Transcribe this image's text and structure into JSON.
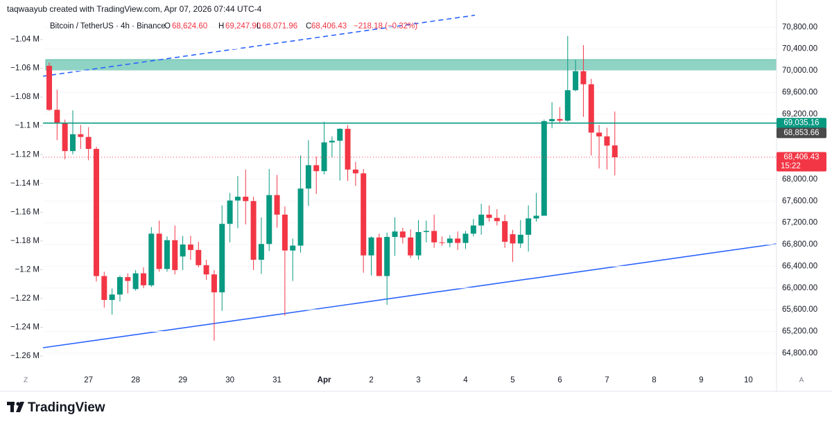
{
  "chart_data": {
    "type": "candlestick",
    "attribution": "taqwaayub created with TradingView.com, Apr 07, 2026 07:44 UTC-4",
    "symbol": "Bitcoin / TetherUS · 4h · Binance",
    "legend_values": [
      {
        "key": "O",
        "value": "68,624.60"
      },
      {
        "key": "H",
        "value": "69,247.90"
      },
      {
        "key": "L",
        "value": "68,071.96"
      },
      {
        "key": "C",
        "value": "68,406.43"
      }
    ],
    "change": "−218.18 (−0.32%)",
    "up_color": "#089981",
    "down_color": "#f23645",
    "categories": [
      null,
      null,
      null,
      null,
      null,
      "27",
      null,
      null,
      null,
      null,
      null,
      "28",
      null,
      null,
      null,
      null,
      null,
      "29",
      null,
      null,
      null,
      null,
      null,
      "30",
      null,
      null,
      null,
      null,
      null,
      "31",
      null,
      null,
      null,
      null,
      null,
      "Apr",
      null,
      null,
      null,
      null,
      null,
      "2",
      null,
      null,
      null,
      null,
      null,
      "3",
      null,
      null,
      null,
      null,
      null,
      "4",
      null,
      null,
      null,
      null,
      null,
      "5",
      null,
      null,
      null,
      null,
      null,
      "6",
      null,
      null,
      null,
      null,
      null,
      "7",
      null,
      null,
      null,
      null,
      null,
      "8",
      null,
      null,
      null,
      null,
      null,
      "9",
      null,
      null,
      null,
      null,
      null,
      "10"
    ],
    "open": [
      70090,
      69280,
      69040,
      68520,
      68830,
      68780,
      68560,
      66220,
      65780,
      65880,
      66200,
      65980,
      66270,
      66050,
      67000,
      66350,
      66880,
      66580,
      66800,
      66700,
      66420,
      66250,
      65920,
      67180,
      67610,
      67680,
      67600,
      66520,
      66810,
      67710,
      67350,
      66690,
      66780,
      67830,
      68260,
      68150,
      68680,
      68710,
      68930,
      68180,
      68110,
      66600,
      66930,
      66220,
      66940,
      67040,
      66930,
      66600,
      67030,
      67050,
      66840,
      66830,
      66910,
      66830,
      67000,
      67150,
      67350,
      67290,
      67230,
      66990,
      66820,
      66980,
      67280,
      67330,
      69070,
      69110,
      69080,
      69640,
      69990,
      69750,
      68860,
      68790,
      68624.6,
      null,
      null,
      null,
      null,
      null,
      null,
      null,
      null,
      null,
      null,
      null,
      null,
      null,
      null,
      null,
      null,
      null
    ],
    "high": [
      70150,
      69650,
      69100,
      69270,
      69000,
      68960,
      68600,
      66300,
      65990,
      66230,
      66270,
      66330,
      66380,
      67120,
      67240,
      66950,
      67150,
      66960,
      66960,
      66850,
      66520,
      66330,
      67520,
      67750,
      68060,
      68180,
      67680,
      67300,
      68190,
      68080,
      67500,
      66910,
      68440,
      68720,
      68420,
      69060,
      68790,
      68940,
      69000,
      68320,
      68190,
      66950,
      67000,
      67020,
      67300,
      67110,
      67080,
      67250,
      67240,
      67350,
      66950,
      66970,
      67040,
      67050,
      67270,
      67550,
      67520,
      67450,
      67350,
      67070,
      67250,
      67520,
      67750,
      69100,
      69420,
      69330,
      70640,
      70200,
      70470,
      69850,
      69000,
      68950,
      69247.9,
      null,
      null,
      null,
      null,
      null,
      null,
      null,
      null,
      null,
      null,
      null,
      null,
      null,
      null,
      null,
      null,
      null
    ],
    "low": [
      69260,
      68720,
      68370,
      68460,
      68560,
      68350,
      66120,
      65640,
      65510,
      65750,
      65900,
      65950,
      66000,
      66020,
      66300,
      66300,
      66250,
      66330,
      66520,
      66380,
      66150,
      65030,
      65580,
      66840,
      67100,
      67170,
      66330,
      66260,
      66680,
      67110,
      65490,
      66130,
      66650,
      67510,
      67730,
      68090,
      68400,
      67980,
      67970,
      67880,
      66280,
      66230,
      66220,
      65690,
      66590,
      66820,
      66550,
      66520,
      66840,
      66740,
      66780,
      66750,
      66700,
      66720,
      66950,
      66980,
      67220,
      67150,
      66740,
      66480,
      66740,
      66670,
      67220,
      67330,
      68940,
      69030,
      69060,
      69620,
      69150,
      68440,
      68200,
      68180,
      68071.96,
      null,
      null,
      null,
      null,
      null,
      null,
      null,
      null,
      null,
      null,
      null,
      null,
      null,
      null,
      null,
      null,
      null
    ],
    "close": [
      69280,
      69040,
      68520,
      68830,
      68780,
      68560,
      66220,
      65780,
      65880,
      66200,
      66130,
      66270,
      66050,
      67000,
      66350,
      66880,
      66330,
      66800,
      66700,
      66420,
      66250,
      65920,
      67180,
      67610,
      67680,
      67600,
      66520,
      66810,
      67710,
      67350,
      66690,
      66780,
      67830,
      68260,
      68150,
      68680,
      68710,
      68930,
      68180,
      68110,
      66600,
      66930,
      66220,
      66940,
      67040,
      66930,
      66600,
      67030,
      67050,
      66840,
      66830,
      66910,
      66830,
      67000,
      67150,
      67350,
      67290,
      67230,
      66850,
      66820,
      66980,
      67280,
      67330,
      69070,
      69110,
      69080,
      69640,
      69990,
      69750,
      68860,
      68790,
      68620,
      68406.43,
      null,
      null,
      null,
      null,
      null,
      null,
      null,
      null,
      null,
      null,
      null,
      null,
      null,
      null,
      null,
      null,
      null
    ],
    "ylim": [
      64480,
      71020
    ],
    "yticks": [
      {
        "value": 64800,
        "label": "64,800.00"
      },
      {
        "value": 65200,
        "label": "65,200.00"
      },
      {
        "value": 65600,
        "label": "65,600.00"
      },
      {
        "value": 66000,
        "label": "66,000.00"
      },
      {
        "value": 66400,
        "label": "66,400.00"
      },
      {
        "value": 66800,
        "label": "66,800.00"
      },
      {
        "value": 67200,
        "label": "67,200.00"
      },
      {
        "value": 67600,
        "label": "67,600.00"
      },
      {
        "value": 68000,
        "label": "68,000.00"
      },
      {
        "value": 69200,
        "label": "69,200.00"
      },
      {
        "value": 69600,
        "label": "69,600.00"
      },
      {
        "value": 70000,
        "label": "70,000.00"
      },
      {
        "value": 70400,
        "label": "70,400.00"
      },
      {
        "value": 70800,
        "label": "70,800.00"
      }
    ],
    "y2lim": [
      -1270100,
      -1023100
    ],
    "y2ticks": [
      {
        "value": -1040000,
        "label": "−1.04 M"
      },
      {
        "value": -1060000,
        "label": "−1.06 M"
      },
      {
        "value": -1080000,
        "label": "−1.08 M"
      },
      {
        "value": -1100000,
        "label": "−1.1 M"
      },
      {
        "value": -1120000,
        "label": "−1.12 M"
      },
      {
        "value": -1140000,
        "label": "−1.14 M"
      },
      {
        "value": -1160000,
        "label": "−1.16 M"
      },
      {
        "value": -1180000,
        "label": "−1.18 M"
      },
      {
        "value": -1200000,
        "label": "−1.2 M"
      },
      {
        "value": -1220000,
        "label": "−1.22 M"
      },
      {
        "value": -1240000,
        "label": "−1.24 M"
      },
      {
        "value": -1260000,
        "label": "−1.26 M"
      }
    ],
    "price_lines": [
      {
        "value": 69035.16,
        "label": "69,035.16",
        "color": "#089981",
        "style": "solid"
      },
      {
        "value": 68853.66,
        "label": "68,853.66",
        "color": "#4a4a4a",
        "style": "none"
      },
      {
        "value": 68406.43,
        "label": "68,406.43",
        "sublabel": "15:22",
        "color": "#f23645",
        "style": "dotted"
      }
    ],
    "timezone_button": "Z",
    "auto_button": "A",
    "brand": "TradingView"
  }
}
